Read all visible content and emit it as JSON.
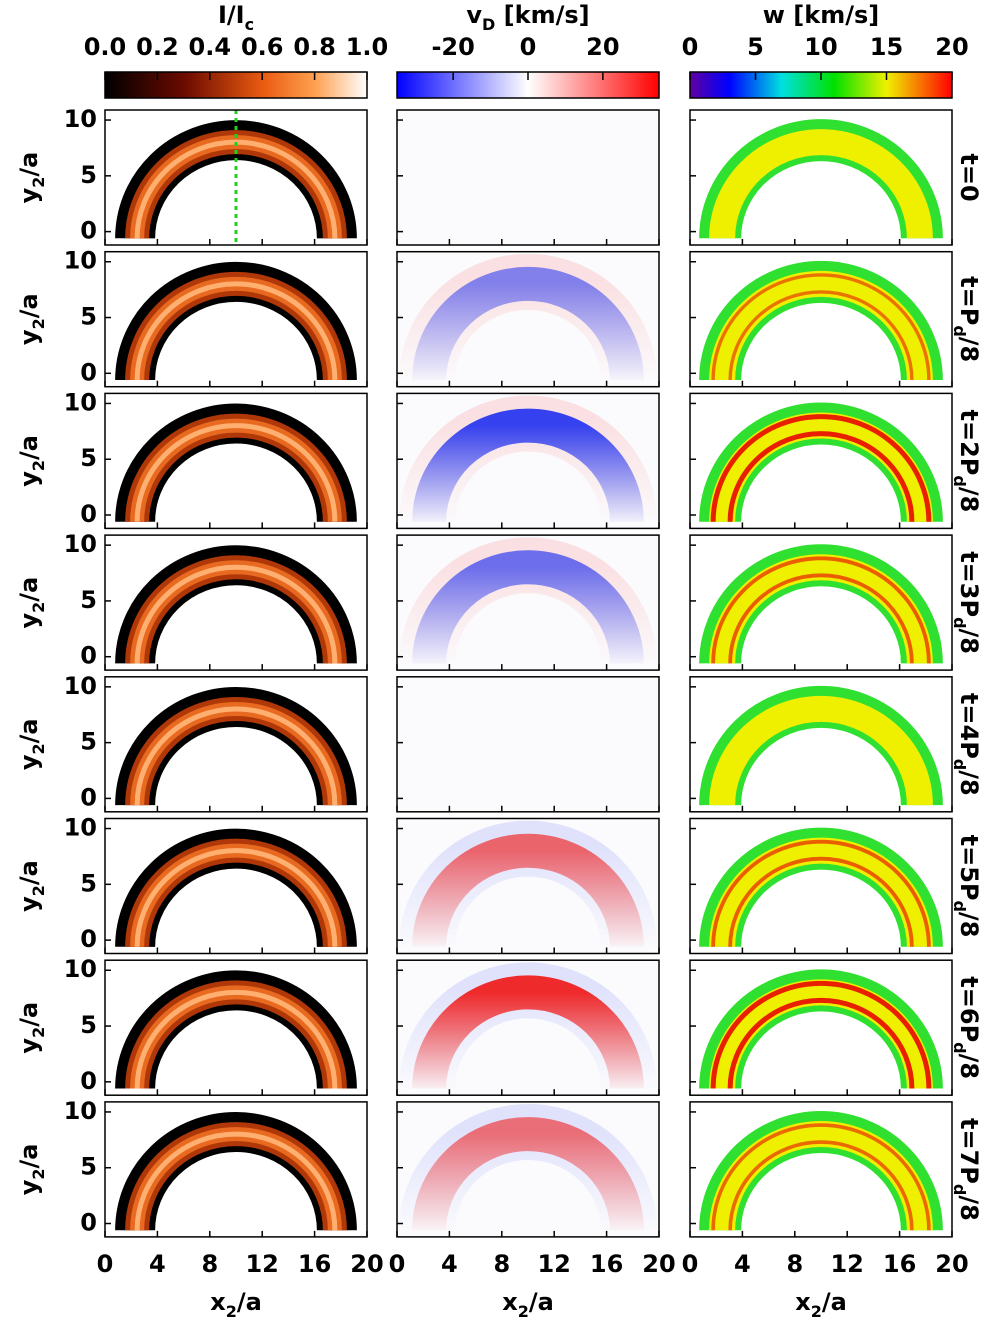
{
  "colorbars": [
    {
      "label": [
        "I/I",
        "c"
      ],
      "lim": [
        0,
        1
      ],
      "ticks": [
        {
          "value": 0,
          "label": "0.0"
        },
        0.2,
        0.4,
        0.6,
        0.8,
        {
          "value": 1,
          "label": "1.0"
        }
      ]
    },
    {
      "label": [
        "v",
        "D",
        " [km/s]"
      ],
      "lim": [
        -35,
        35
      ],
      "ticks": [
        -20,
        0,
        20
      ]
    },
    {
      "label": [
        "w [km/s]"
      ],
      "lim": [
        0,
        20
      ],
      "ticks": [
        0,
        5,
        10,
        15,
        20
      ]
    }
  ],
  "x_axis": {
    "label": [
      "x",
      "2",
      "/a"
    ],
    "lim": [
      0,
      20
    ],
    "ticks": [
      0,
      4,
      8,
      12,
      16,
      20
    ]
  },
  "y_axis": {
    "label": [
      "y",
      "2",
      "/a"
    ],
    "lim": [
      -1.2,
      10.9
    ],
    "ticks": [
      0,
      5,
      10
    ]
  },
  "rows": [
    [
      "t=0"
    ],
    [
      "t=P",
      "d",
      "/8"
    ],
    [
      "t=2P",
      "d",
      "/8"
    ],
    [
      "t=3P",
      "d",
      "/8"
    ],
    [
      "t=4P",
      "d",
      "/8"
    ],
    [
      "t=5P",
      "d",
      "/8"
    ],
    [
      "t=6P",
      "d",
      "/8"
    ],
    [
      "t=7P",
      "d",
      "/8"
    ]
  ]
}
